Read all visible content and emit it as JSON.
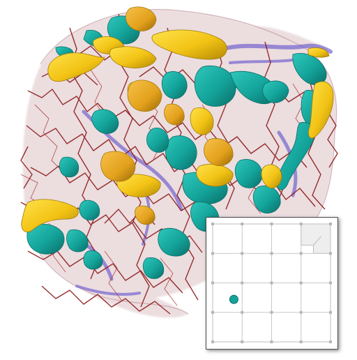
{
  "viewport": {
    "background": "#ffffff",
    "palette": {
      "network_red": "#8b1a1a",
      "network_haze": "#c9a0a6",
      "vessel_blue": "#6a5acd",
      "surface_teal": "#13a39a",
      "surface_teal_dark": "#0b6e68",
      "surface_yellow": "#f2c315",
      "surface_orange": "#e3a11c"
    },
    "layers": [
      {
        "name": "translucent-halo",
        "icon": "haze-surface"
      },
      {
        "name": "filament-network",
        "icon": "dark-red-lines"
      },
      {
        "name": "blue-vessels",
        "icon": "blue-tubes"
      },
      {
        "name": "teal-surfaces",
        "icon": "teal-blobs"
      },
      {
        "name": "yellow-surfaces",
        "icon": "yellow-blobs"
      }
    ]
  },
  "minimap": {
    "grid_rows": 4,
    "grid_cols": 4,
    "highlighted_cell": {
      "row": 0,
      "col": 3
    },
    "marker": {
      "col_fraction": 0.18,
      "row_fraction": 0.64,
      "color": "#13a39a"
    },
    "frame_color": "#4a4a4a",
    "grid_color": "#c8c8c8",
    "highlight_color": "#eeeeee"
  }
}
